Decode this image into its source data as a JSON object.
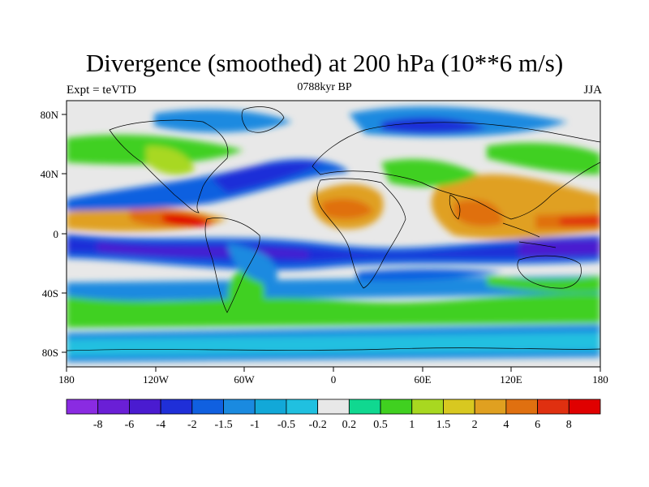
{
  "title": "Divergence (smoothed) at 200 hPa (10**6 m/s)",
  "subtitle_left": "Expt = teVTD",
  "subtitle_center": "0788kyr BP",
  "subtitle_right": "JJA",
  "lat_labels": [
    "80N",
    "40N",
    "0",
    "40S",
    "80S"
  ],
  "lon_labels": [
    "180",
    "120W",
    "60W",
    "0",
    "60E",
    "120E",
    "180"
  ],
  "colorbar": {
    "labels": [
      "-8",
      "-6",
      "-4",
      "-2",
      "-1.5",
      "-1",
      "-0.5",
      "-0.2",
      "0.2",
      "0.5",
      "1",
      "1.5",
      "2",
      "4",
      "6",
      "8"
    ],
    "colors": [
      "#8a2be2",
      "#6a1fd6",
      "#4a1bd0",
      "#1f2fd8",
      "#1060e0",
      "#1a8ae0",
      "#12a8d8",
      "#20c0e0",
      "#e8e8e8",
      "#10d890",
      "#40d020",
      "#a8d820",
      "#d8c820",
      "#e0a020",
      "#e07010",
      "#e03010",
      "#e00000"
    ]
  },
  "map": {
    "background_color": "#e8e8e8"
  }
}
